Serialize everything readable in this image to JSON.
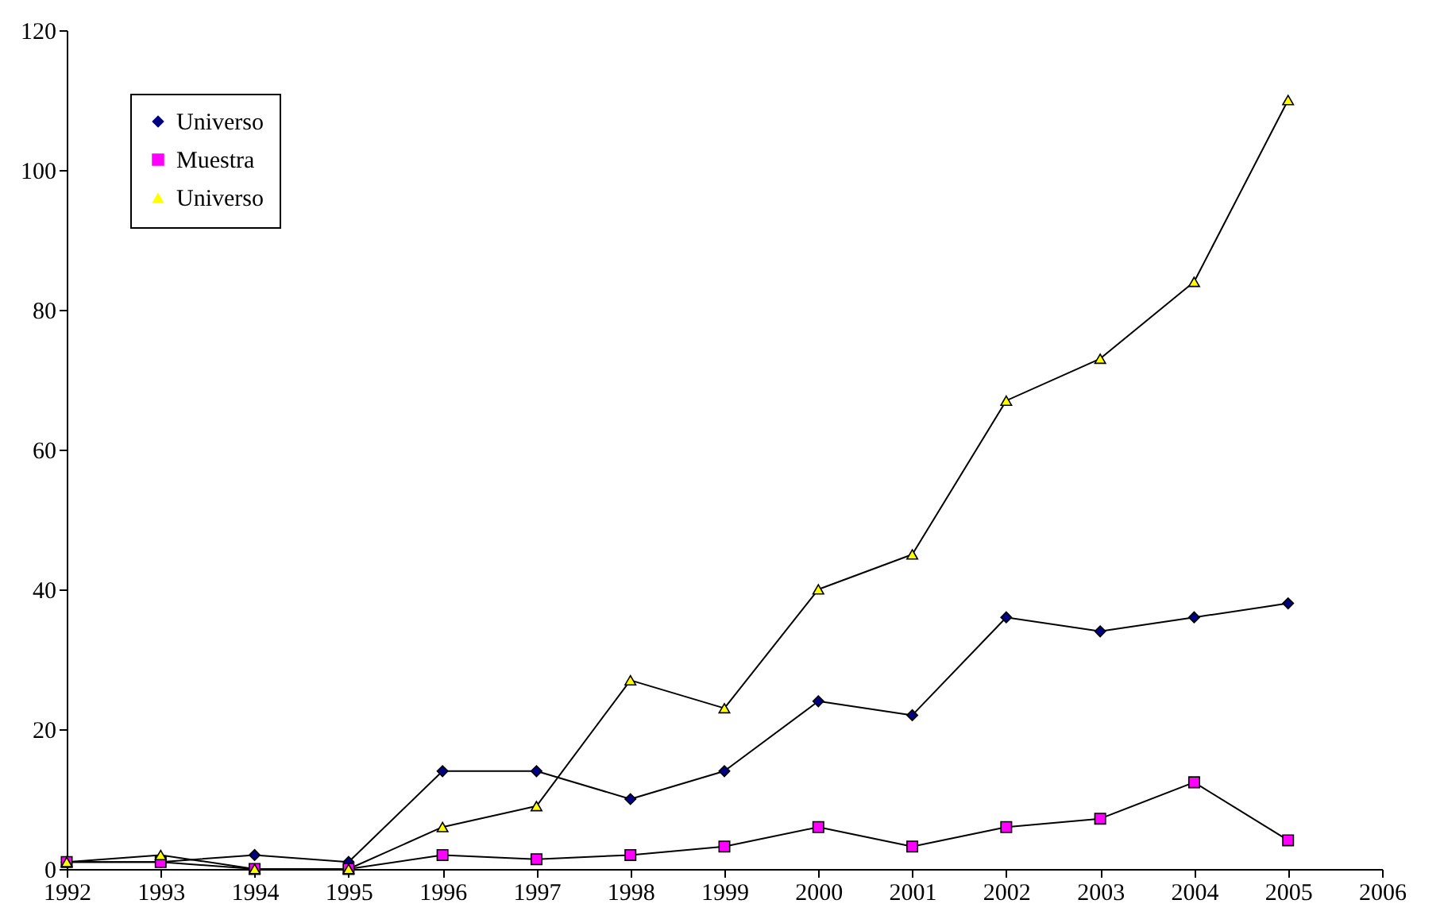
{
  "chart_data": {
    "type": "line",
    "x": [
      1992,
      1993,
      1994,
      1995,
      1996,
      1997,
      1998,
      1999,
      2000,
      2001,
      2002,
      2003,
      2004,
      2005
    ],
    "series": [
      {
        "name": "Universo",
        "color": "#000080",
        "marker": "diamond",
        "values": [
          1,
          1,
          2,
          1,
          14,
          14,
          10,
          14,
          24,
          22,
          36,
          34,
          36,
          38
        ]
      },
      {
        "name": "Muestra",
        "color": "#ff00ff",
        "marker": "square",
        "values": [
          1,
          1,
          0,
          0,
          2,
          1.4,
          2,
          3.2,
          6,
          3.2,
          6,
          7.2,
          12.4,
          4.1
        ]
      },
      {
        "name": "Universo",
        "color": "#ffff00",
        "marker": "triangle",
        "values": [
          1,
          2,
          0,
          0,
          6,
          9,
          27,
          23,
          40,
          45,
          67,
          73,
          84,
          110
        ]
      }
    ],
    "xlim": [
      1992,
      2006
    ],
    "xticks": [
      1992,
      1993,
      1994,
      1995,
      1996,
      1997,
      1998,
      1999,
      2000,
      2001,
      2002,
      2003,
      2004,
      2005,
      2006
    ],
    "ylim": [
      0,
      120
    ],
    "yticks": [
      0,
      20,
      40,
      60,
      80,
      100,
      120
    ],
    "grid": false,
    "legend": "top left"
  }
}
